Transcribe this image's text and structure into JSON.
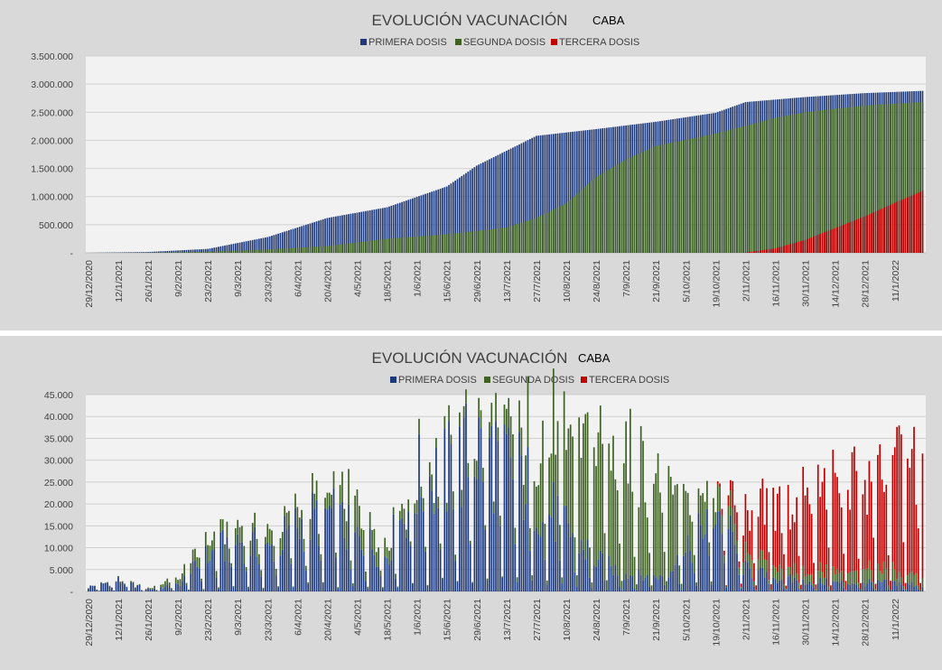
{
  "colors": {
    "primera": "#1f3a7a",
    "segunda": "#3f6224",
    "tercera": "#c00000",
    "plot_bg": "#f2f2f2",
    "grid": "#d0d0d0"
  },
  "x_dates": [
    "29/12/2020",
    "12/1/2021",
    "26/1/2021",
    "9/2/2021",
    "23/2/2021",
    "9/3/2021",
    "23/3/2021",
    "6/4/2021",
    "20/4/2021",
    "4/5/2021",
    "18/5/2021",
    "1/6/2021",
    "15/6/2021",
    "29/6/2021",
    "13/7/2021",
    "27/7/2021",
    "10/8/2021",
    "24/8/2021",
    "7/9/2021",
    "21/9/2021",
    "5/10/2021",
    "19/10/2021",
    "2/11/2021",
    "16/11/2021",
    "30/11/2021",
    "14/12/2021",
    "28/12/2021",
    "11/1/2022"
  ],
  "chart_data": [
    {
      "type": "bar",
      "stacking": "overlap",
      "title": "EVOLUCIÓN VACUNACIÓN",
      "subtitle": "CABA",
      "legend_position": "top",
      "grid": true,
      "ylim": [
        0,
        3500000
      ],
      "y_ticks": [
        "3.500.000",
        "3.000.000",
        "2.500.000",
        "2.000.000",
        "1.500.000",
        "1.000.000",
        "500.000",
        "-"
      ],
      "x_range": [
        "29/12/2020",
        "24/1/2022"
      ],
      "series": [
        {
          "name": "PRIMERA DOSIS",
          "points": [
            [
              "29/12/2020",
              0
            ],
            [
              "26/1/2021",
              15000
            ],
            [
              "23/2/2021",
              70000
            ],
            [
              "23/3/2021",
              280000
            ],
            [
              "20/4/2021",
              620000
            ],
            [
              "18/5/2021",
              810000
            ],
            [
              "15/6/2021",
              1180000
            ],
            [
              "29/6/2021",
              1550000
            ],
            [
              "27/7/2021",
              2080000
            ],
            [
              "24/8/2021",
              2200000
            ],
            [
              "21/9/2021",
              2330000
            ],
            [
              "19/10/2021",
              2490000
            ],
            [
              "2/11/2021",
              2680000
            ],
            [
              "30/11/2021",
              2770000
            ],
            [
              "28/12/2021",
              2840000
            ],
            [
              "24/1/2022",
              2880000
            ]
          ]
        },
        {
          "name": "SEGUNDA DOSIS",
          "points": [
            [
              "29/12/2020",
              0
            ],
            [
              "26/1/2021",
              3000
            ],
            [
              "23/2/2021",
              20000
            ],
            [
              "23/3/2021",
              60000
            ],
            [
              "20/4/2021",
              120000
            ],
            [
              "18/5/2021",
              250000
            ],
            [
              "15/6/2021",
              330000
            ],
            [
              "13/7/2021",
              450000
            ],
            [
              "27/7/2021",
              620000
            ],
            [
              "10/8/2021",
              880000
            ],
            [
              "24/8/2021",
              1350000
            ],
            [
              "7/9/2021",
              1660000
            ],
            [
              "21/9/2021",
              1900000
            ],
            [
              "19/10/2021",
              2120000
            ],
            [
              "16/11/2021",
              2400000
            ],
            [
              "30/11/2021",
              2500000
            ],
            [
              "28/12/2021",
              2620000
            ],
            [
              "24/1/2022",
              2680000
            ]
          ]
        },
        {
          "name": "TERCERA DOSIS",
          "points": [
            [
              "29/12/2020",
              0
            ],
            [
              "1/11/2021",
              0
            ],
            [
              "16/11/2021",
              80000
            ],
            [
              "30/11/2021",
              230000
            ],
            [
              "14/12/2021",
              440000
            ],
            [
              "28/12/2021",
              650000
            ],
            [
              "11/1/2022",
              890000
            ],
            [
              "24/1/2022",
              1100000
            ]
          ]
        }
      ]
    },
    {
      "type": "bar",
      "stacking": "stacked",
      "title": "EVOLUCIÓN VACUNACIÓN",
      "subtitle": "CABA",
      "legend_position": "top",
      "grid": true,
      "ylim": [
        0,
        45000
      ],
      "y_ticks": [
        "45.000",
        "40.000",
        "35.000",
        "30.000",
        "25.000",
        "20.000",
        "15.000",
        "10.000",
        "5.000",
        "-"
      ],
      "x_range": [
        "29/12/2020",
        "24/1/2022"
      ],
      "series": [
        {
          "name": "PRIMERA DOSIS",
          "points": [
            [
              "29/12/2020",
              1000
            ],
            [
              "12/1/2021",
              2500
            ],
            [
              "26/1/2021",
              500
            ],
            [
              "9/2/2021",
              1500
            ],
            [
              "23/2/2021",
              8000
            ],
            [
              "9/3/2021",
              12000
            ],
            [
              "23/3/2021",
              9000
            ],
            [
              "6/4/2021",
              15000
            ],
            [
              "20/4/2021",
              18000
            ],
            [
              "4/5/2021",
              12000
            ],
            [
              "18/5/2021",
              9000
            ],
            [
              "1/6/2021",
              25000
            ],
            [
              "15/6/2021",
              27000
            ],
            [
              "29/6/2021",
              33000
            ],
            [
              "13/7/2021",
              30000
            ],
            [
              "27/7/2021",
              22000
            ],
            [
              "10/8/2021",
              15000
            ],
            [
              "24/8/2021",
              7000
            ],
            [
              "7/9/2021",
              4000
            ],
            [
              "21/9/2021",
              3000
            ],
            [
              "5/10/2021",
              8000
            ],
            [
              "19/10/2021",
              20000
            ],
            [
              "2/11/2021",
              5000
            ],
            [
              "16/11/2021",
              3000
            ],
            [
              "30/11/2021",
              2500
            ],
            [
              "14/12/2021",
              2000
            ],
            [
              "28/12/2021",
              2000
            ],
            [
              "11/1/2022",
              2000
            ],
            [
              "24/1/2022",
              1500
            ]
          ]
        },
        {
          "name": "SEGUNDA DOSIS",
          "points": [
            [
              "29/12/2020",
              0
            ],
            [
              "12/1/2021",
              200
            ],
            [
              "26/1/2021",
              200
            ],
            [
              "9/2/2021",
              1500
            ],
            [
              "23/2/2021",
              3000
            ],
            [
              "9/3/2021",
              3000
            ],
            [
              "23/3/2021",
              3000
            ],
            [
              "6/4/2021",
              3500
            ],
            [
              "20/4/2021",
              3000
            ],
            [
              "4/5/2021",
              8000
            ],
            [
              "18/5/2021",
              3000
            ],
            [
              "1/6/2021",
              2500
            ],
            [
              "15/6/2021",
              3000
            ],
            [
              "29/6/2021",
              3000
            ],
            [
              "13/7/2021",
              6000
            ],
            [
              "27/7/2021",
              15000
            ],
            [
              "10/8/2021",
              20000
            ],
            [
              "24/8/2021",
              26000
            ],
            [
              "7/9/2021",
              28000
            ],
            [
              "21/9/2021",
              22000
            ],
            [
              "5/10/2021",
              12000
            ],
            [
              "19/10/2021",
              5000
            ],
            [
              "2/11/2021",
              3000
            ],
            [
              "16/11/2021",
              3000
            ],
            [
              "30/11/2021",
              2500
            ],
            [
              "14/12/2021",
              2500
            ],
            [
              "28/12/2021",
              3000
            ],
            [
              "11/1/2022",
              3000
            ],
            [
              "24/1/2022",
              2000
            ]
          ]
        },
        {
          "name": "TERCERA DOSIS",
          "points": [
            [
              "29/12/2020",
              0
            ],
            [
              "19/10/2021",
              0
            ],
            [
              "2/11/2021",
              8000
            ],
            [
              "16/11/2021",
              14000
            ],
            [
              "30/11/2021",
              16000
            ],
            [
              "14/12/2021",
              20000
            ],
            [
              "28/12/2021",
              21000
            ],
            [
              "11/1/2022",
              24000
            ],
            [
              "24/1/2022",
              27000
            ]
          ]
        }
      ]
    }
  ]
}
